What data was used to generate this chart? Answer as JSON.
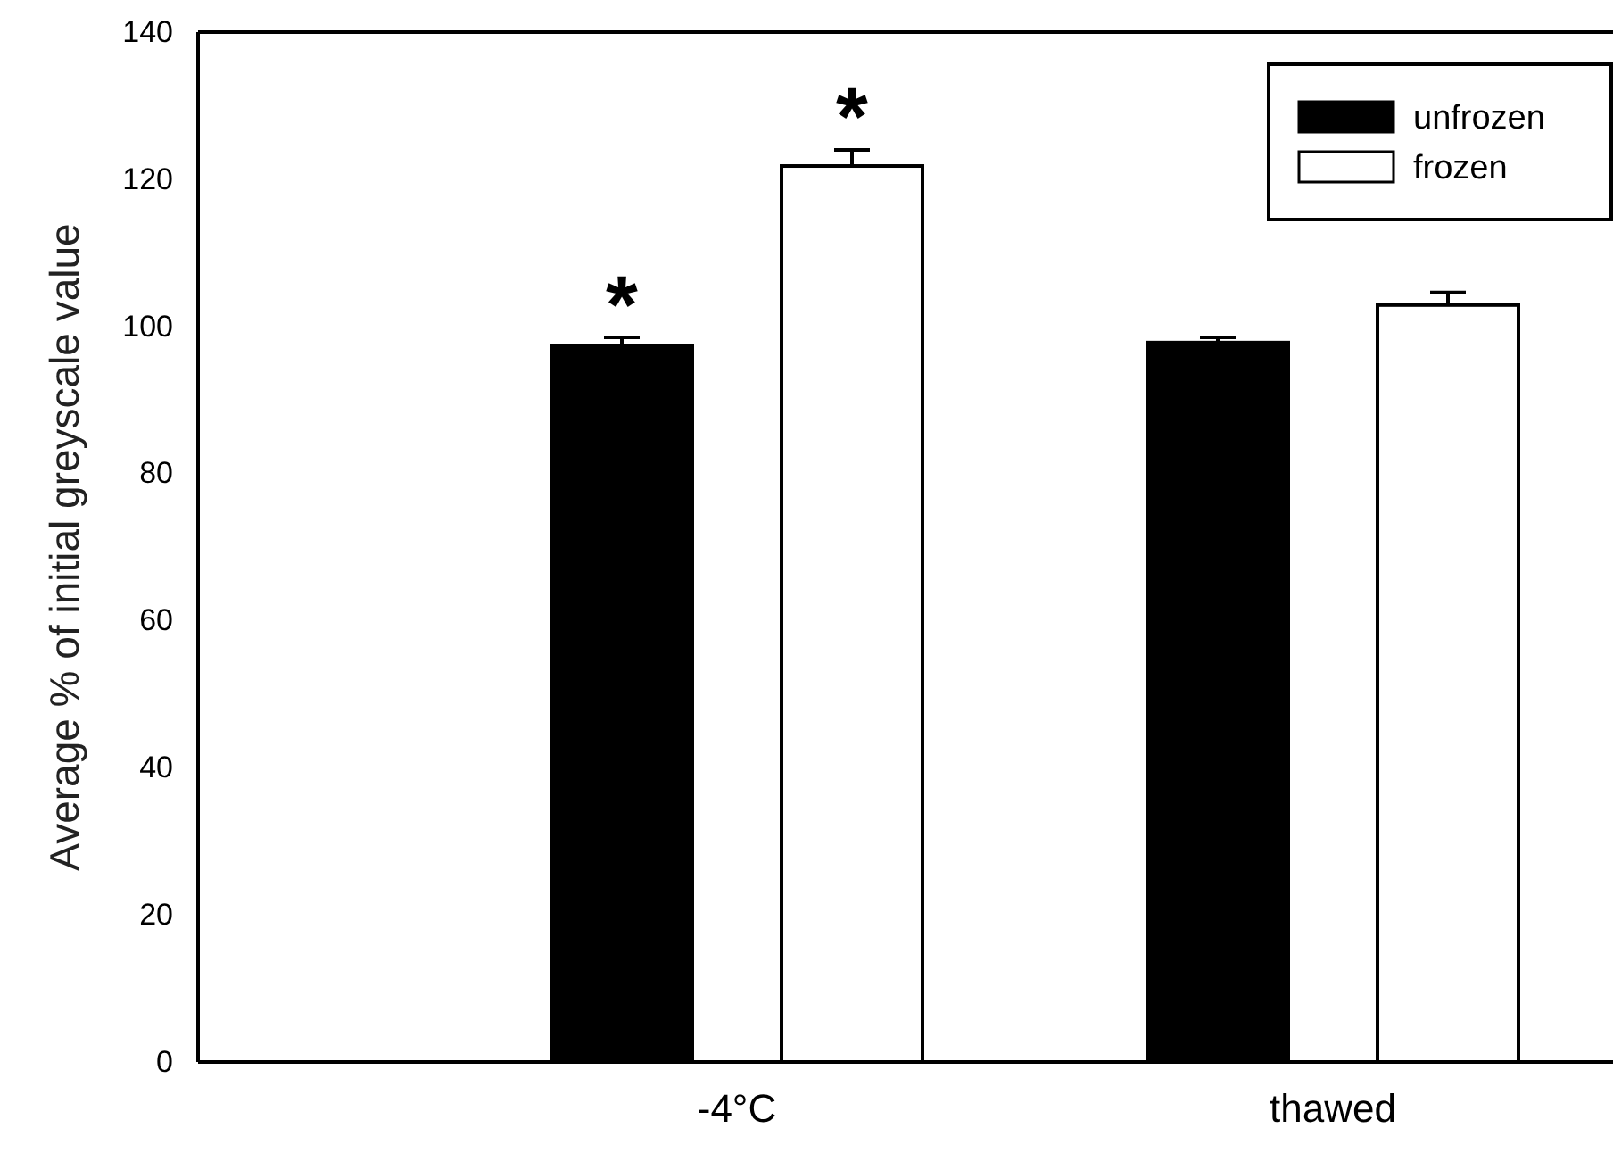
{
  "chart_data": {
    "type": "bar",
    "ylabel": "Average % of initial greyscale value",
    "categories": [
      "-4°C",
      "thawed"
    ],
    "series": [
      {
        "name": "unfrozen",
        "color": "#000000",
        "values": [
          97.3,
          97.8
        ],
        "errors": [
          1.2,
          0.7
        ]
      },
      {
        "name": "frozen",
        "color": "#ffffff",
        "values": [
          121.8,
          102.9
        ],
        "errors": [
          2.2,
          1.7
        ]
      }
    ],
    "ylim": [
      0,
      140
    ],
    "yticks": [
      0,
      20,
      40,
      60,
      80,
      100,
      120,
      140
    ],
    "annotations": [
      "*",
      "*"
    ],
    "legend": "top right"
  }
}
